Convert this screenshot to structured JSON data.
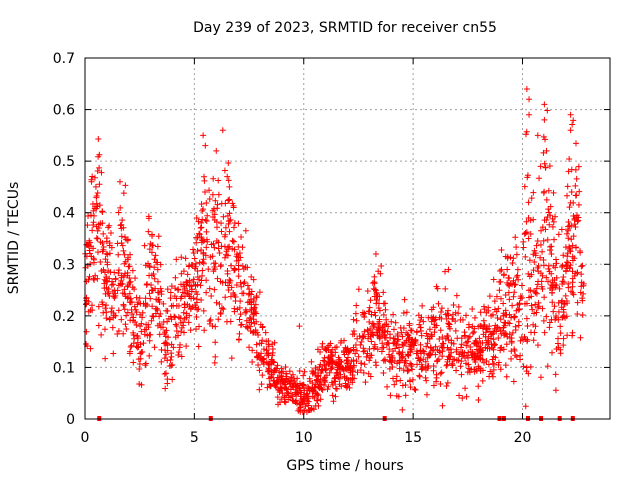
{
  "chart_data": {
    "type": "scatter",
    "title": "Day 239 of 2023, SRMTID for receiver cn55",
    "xlabel": "GPS time / hours",
    "ylabel": "SRMTID / TECUs",
    "xlim": [
      0,
      24
    ],
    "ylim": [
      0,
      0.7
    ],
    "grid": true,
    "x_ticks": [
      0,
      5,
      10,
      15,
      20
    ],
    "x_tick_labels": [
      "0",
      "5",
      "10",
      "15",
      "20"
    ],
    "y_ticks": [
      0,
      0.1,
      0.2,
      0.3,
      0.4,
      0.5,
      0.6,
      0.7
    ],
    "y_tick_labels": [
      "0",
      "0.1",
      "0.2",
      "0.3",
      "0.4",
      "0.5",
      "0.6",
      "0.7"
    ],
    "marker": "+",
    "color": "#ff0000",
    "profile": [
      [
        0.0,
        0.26,
        0.06
      ],
      [
        0.3,
        0.33,
        0.08
      ],
      [
        0.6,
        0.37,
        0.09
      ],
      [
        0.9,
        0.27,
        0.06
      ],
      [
        1.3,
        0.24,
        0.05
      ],
      [
        1.7,
        0.3,
        0.08
      ],
      [
        2.1,
        0.21,
        0.06
      ],
      [
        2.5,
        0.15,
        0.05
      ],
      [
        2.9,
        0.24,
        0.07
      ],
      [
        3.3,
        0.26,
        0.06
      ],
      [
        3.7,
        0.13,
        0.04
      ],
      [
        4.1,
        0.2,
        0.05
      ],
      [
        4.5,
        0.22,
        0.05
      ],
      [
        4.9,
        0.25,
        0.05
      ],
      [
        5.2,
        0.29,
        0.07
      ],
      [
        5.5,
        0.36,
        0.09
      ],
      [
        5.9,
        0.3,
        0.08
      ],
      [
        6.3,
        0.36,
        0.09
      ],
      [
        6.8,
        0.29,
        0.07
      ],
      [
        7.3,
        0.24,
        0.06
      ],
      [
        7.8,
        0.17,
        0.04
      ],
      [
        8.3,
        0.12,
        0.03
      ],
      [
        8.8,
        0.08,
        0.025
      ],
      [
        9.3,
        0.06,
        0.02
      ],
      [
        9.8,
        0.05,
        0.02
      ],
      [
        10.2,
        0.04,
        0.02
      ],
      [
        10.6,
        0.07,
        0.025
      ],
      [
        11.0,
        0.11,
        0.03
      ],
      [
        11.5,
        0.09,
        0.025
      ],
      [
        12.0,
        0.1,
        0.03
      ],
      [
        12.5,
        0.15,
        0.04
      ],
      [
        13.0,
        0.17,
        0.04
      ],
      [
        13.5,
        0.21,
        0.05
      ],
      [
        14.0,
        0.13,
        0.04
      ],
      [
        14.5,
        0.12,
        0.04
      ],
      [
        15.0,
        0.13,
        0.04
      ],
      [
        15.5,
        0.14,
        0.04
      ],
      [
        16.0,
        0.15,
        0.05
      ],
      [
        16.5,
        0.16,
        0.05
      ],
      [
        17.0,
        0.15,
        0.04
      ],
      [
        17.5,
        0.13,
        0.04
      ],
      [
        18.0,
        0.14,
        0.04
      ],
      [
        18.5,
        0.16,
        0.04
      ],
      [
        19.0,
        0.2,
        0.06
      ],
      [
        19.5,
        0.22,
        0.06
      ],
      [
        19.9,
        0.22,
        0.06
      ],
      [
        20.2,
        0.32,
        0.15
      ],
      [
        20.6,
        0.26,
        0.08
      ],
      [
        21.0,
        0.36,
        0.12
      ],
      [
        21.4,
        0.28,
        0.09
      ],
      [
        21.8,
        0.22,
        0.06
      ],
      [
        22.2,
        0.33,
        0.1
      ],
      [
        22.5,
        0.38,
        0.1
      ],
      [
        22.8,
        0.22,
        0.03
      ]
    ],
    "peaks": [
      [
        5.4,
        0.55
      ],
      [
        5.5,
        0.53
      ],
      [
        6.0,
        0.52
      ],
      [
        6.3,
        0.56
      ],
      [
        6.5,
        0.47
      ],
      [
        6.6,
        0.45
      ],
      [
        0.3,
        0.46
      ],
      [
        0.5,
        0.45
      ],
      [
        1.6,
        0.46
      ],
      [
        20.2,
        0.64
      ],
      [
        20.3,
        0.62
      ],
      [
        20.3,
        0.59
      ],
      [
        21.0,
        0.61
      ],
      [
        21.0,
        0.58
      ],
      [
        20.7,
        0.55
      ],
      [
        22.2,
        0.59
      ],
      [
        22.2,
        0.56
      ],
      [
        21.1,
        0.52
      ],
      [
        9.8,
        0.18
      ],
      [
        13.3,
        0.32
      ],
      [
        12.4,
        0.22
      ],
      [
        19.3,
        0.29
      ]
    ],
    "gap_markers_x": [
      0.65,
      5.75,
      13.7,
      18.95,
      19.15,
      20.25,
      20.85,
      21.7,
      22.3
    ]
  }
}
